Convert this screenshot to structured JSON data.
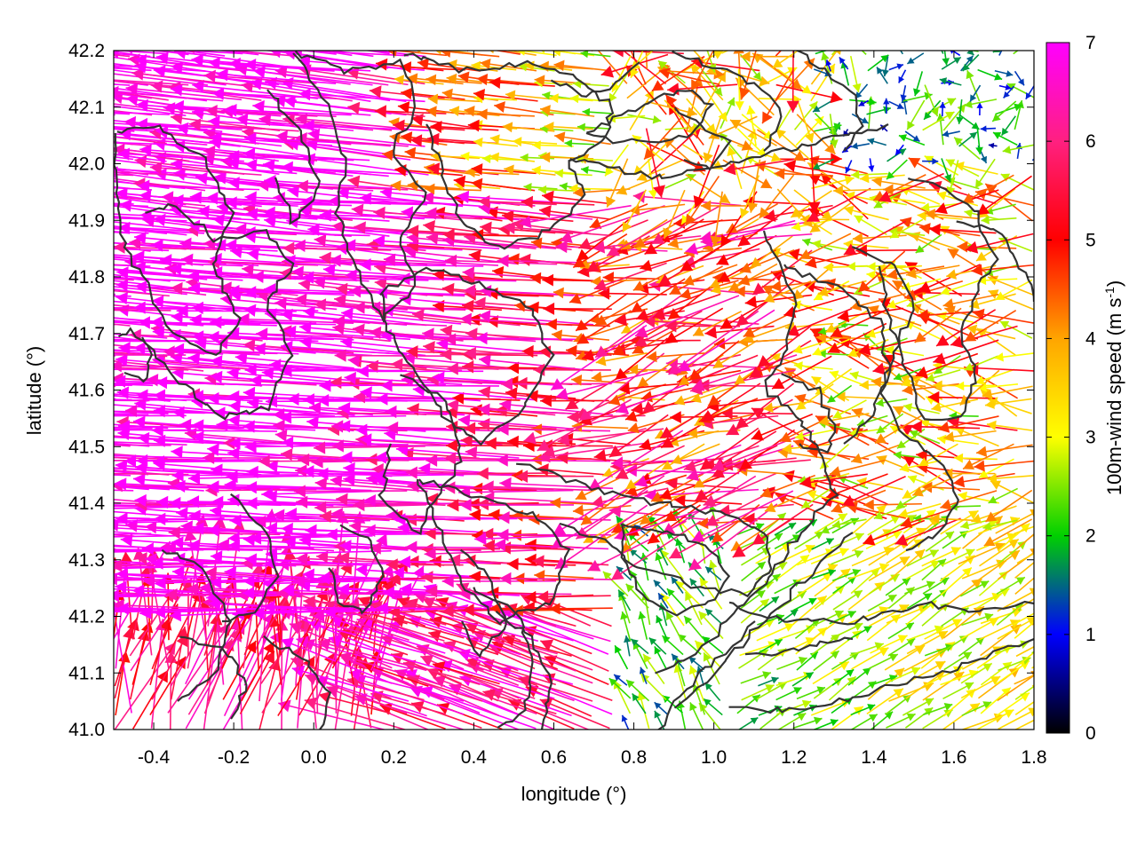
{
  "chart_data": {
    "type": "vector-field",
    "xlabel": "longitude (°)",
    "ylabel": "latitude (°)",
    "colorbar_label": "100m-wind speed (m s",
    "colorbar_label_sup": "-1",
    "colorbar_label_end": ")",
    "xlim": [
      -0.5,
      1.8
    ],
    "ylim": [
      41.0,
      42.2
    ],
    "clim": [
      0,
      7
    ],
    "x_ticks": [
      -0.4,
      -0.2,
      0.0,
      0.2,
      0.4,
      0.6,
      0.8,
      1.0,
      1.2,
      1.4,
      1.6,
      1.8
    ],
    "x_tick_labels": [
      "-0.4",
      "-0.2",
      "0.0",
      "0.2",
      "0.4",
      "0.6",
      "0.8",
      "1.0",
      "1.2",
      "1.4",
      "1.6",
      "1.8"
    ],
    "y_ticks": [
      41.0,
      41.1,
      41.2,
      41.3,
      41.4,
      41.5,
      41.6,
      41.7,
      41.8,
      41.9,
      42.0,
      42.1,
      42.2
    ],
    "y_tick_labels": [
      "41.0",
      "41.1",
      "41.2",
      "41.3",
      "41.4",
      "41.5",
      "41.6",
      "41.7",
      "41.8",
      "41.9",
      "42.0",
      "42.1",
      "42.2"
    ],
    "colorbar_ticks": [
      0,
      1,
      2,
      3,
      4,
      5,
      6,
      7
    ],
    "colorbar_tick_labels": [
      "0",
      "1",
      "2",
      "3",
      "4",
      "5",
      "6",
      "7"
    ],
    "colormap": [
      "#000000",
      "#0000ff",
      "#00d000",
      "#ffff00",
      "#ffa500",
      "#ff0000",
      "#ff00ff"
    ],
    "contour_color": "#333333",
    "grid": false
  }
}
